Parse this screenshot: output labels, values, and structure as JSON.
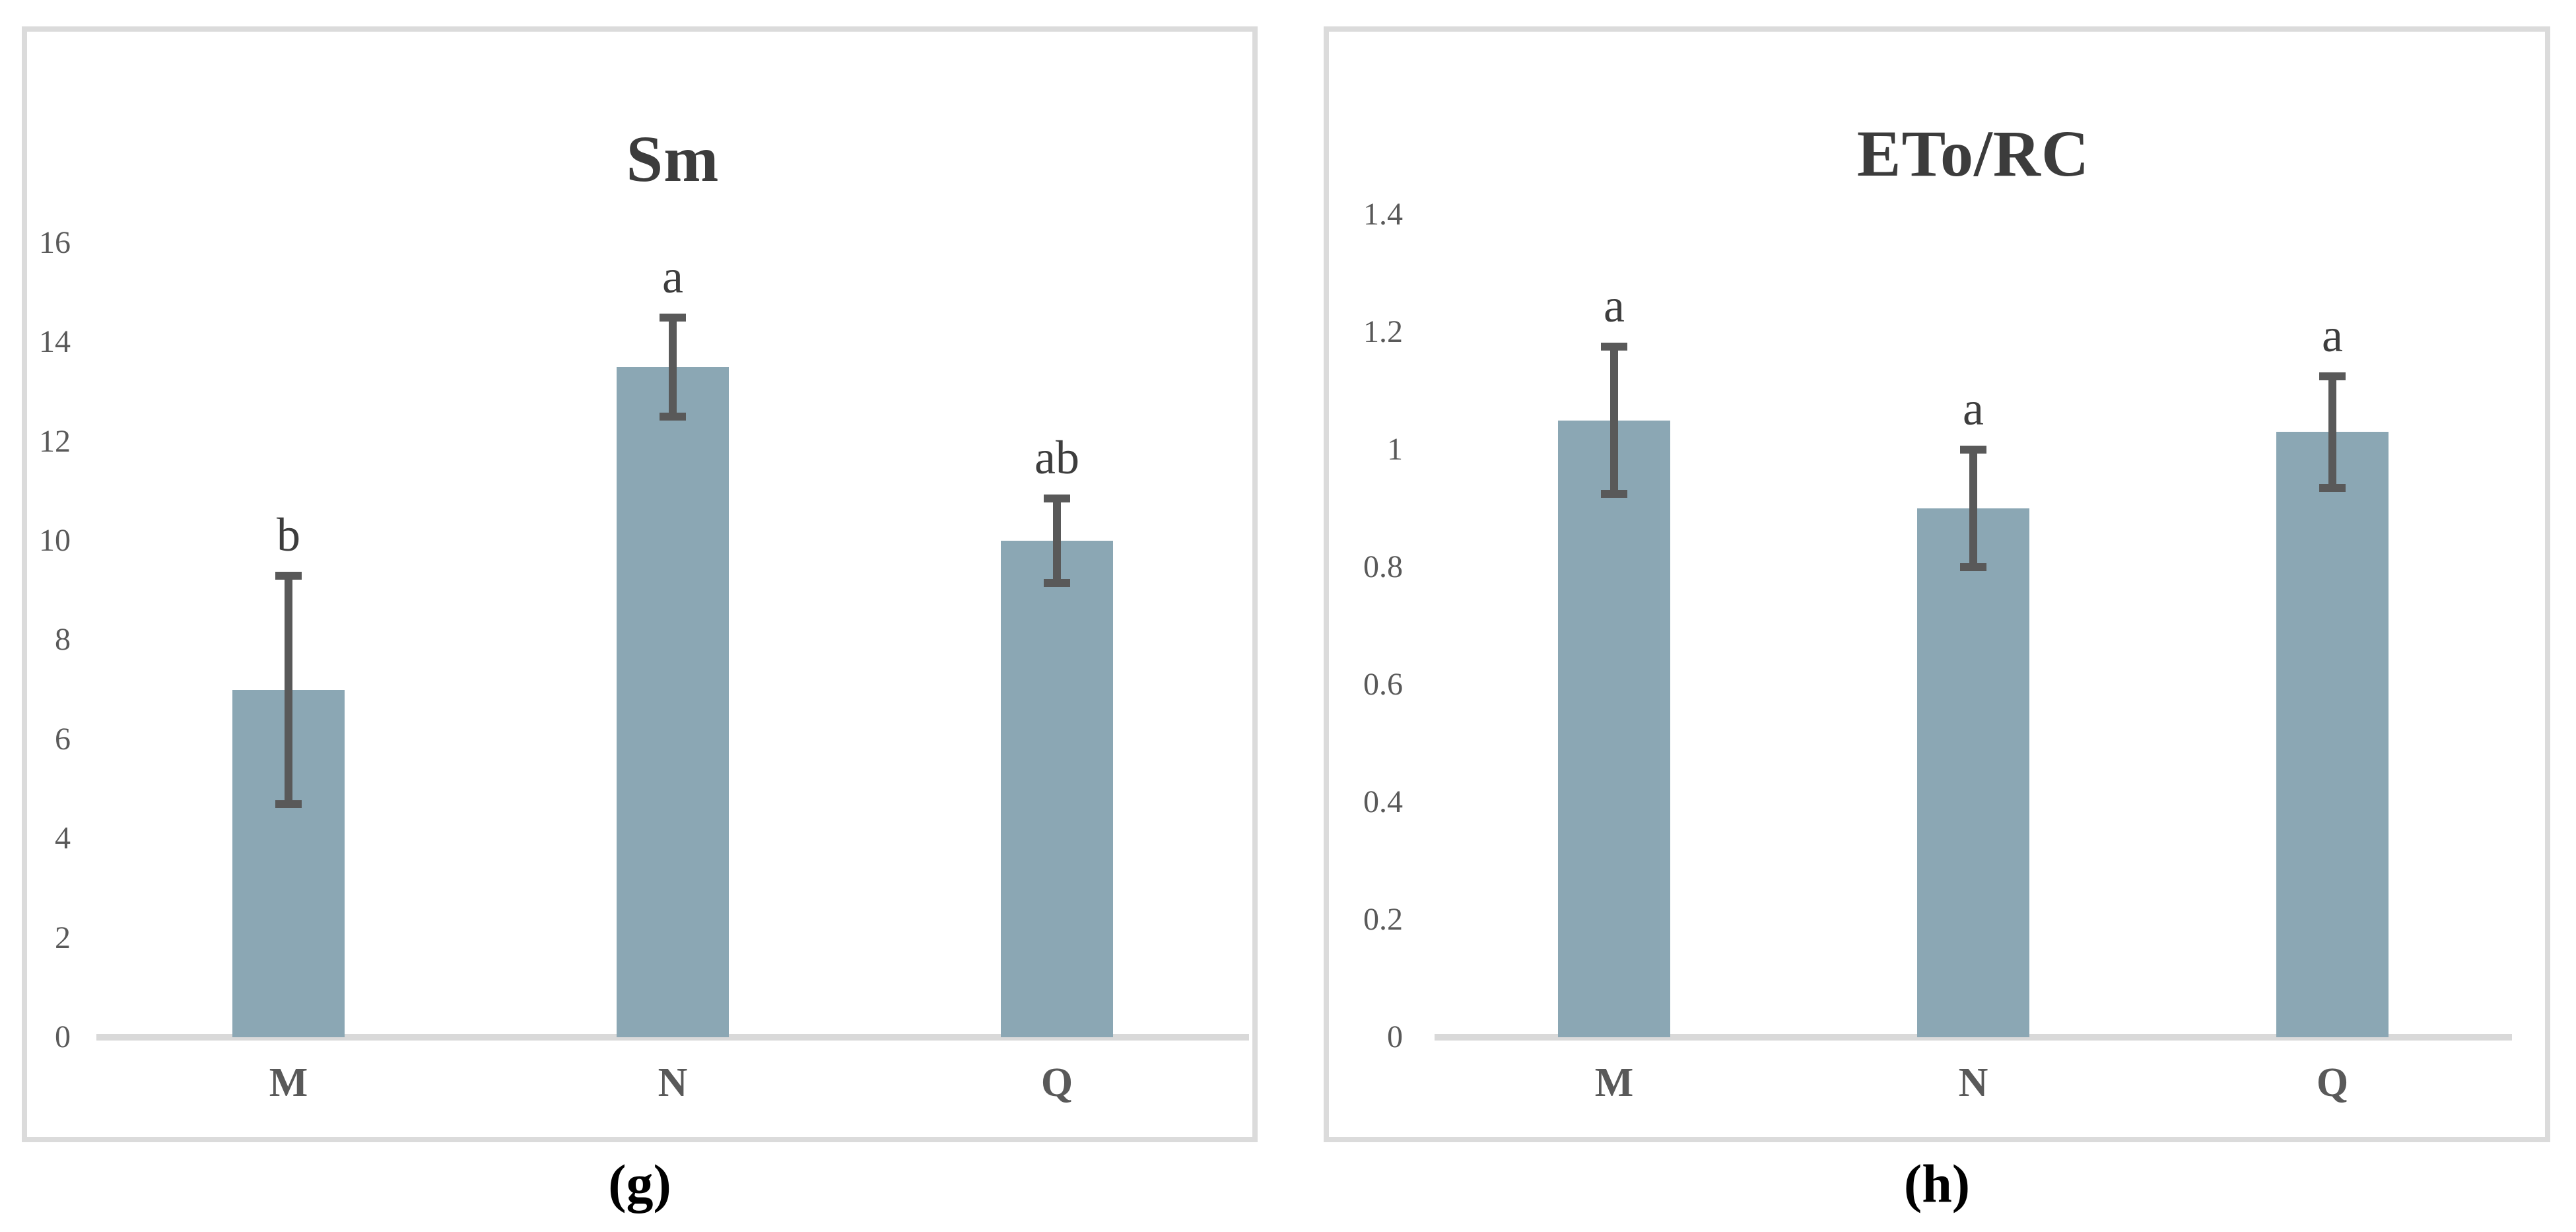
{
  "figure": {
    "description": "Two-panel bar chart figure with significance letters and error bars",
    "panel_captions": [
      "(g)",
      "(h)"
    ],
    "colors": {
      "bar_fill": "#8ba7b4",
      "error_bar": "#595959",
      "axis_line": "#d9d9d9",
      "panel_border": "#dbdbdb",
      "tick_text": "#595959",
      "title_text": "#3c3c3c",
      "caption_text": "#000000"
    }
  },
  "chart_data": [
    {
      "type": "bar",
      "title": "Sm",
      "caption": "(g)",
      "categories": [
        "M",
        "N",
        "Q"
      ],
      "values": [
        7.0,
        13.5,
        10.0
      ],
      "errors": [
        2.3,
        1.0,
        0.85
      ],
      "sig_letters": [
        "b",
        "a",
        "ab"
      ],
      "yticks": [
        0,
        2,
        4,
        6,
        8,
        10,
        12,
        14,
        16
      ],
      "ytick_labels": [
        "0",
        "2",
        "4",
        "6",
        "8",
        "10",
        "12",
        "14",
        "16"
      ],
      "ylim": [
        0,
        16
      ],
      "xlabel": "",
      "ylabel": "",
      "grid": false,
      "legend": false
    },
    {
      "type": "bar",
      "title": "ETo/RC",
      "caption": "(h)",
      "categories": [
        "M",
        "N",
        "Q"
      ],
      "values": [
        1.05,
        0.9,
        1.03
      ],
      "errors": [
        0.125,
        0.1,
        0.095
      ],
      "sig_letters": [
        "a",
        "a",
        "a"
      ],
      "yticks": [
        0,
        0.2,
        0.4,
        0.6,
        0.8,
        1,
        1.2,
        1.4
      ],
      "ytick_labels": [
        "0",
        "0.2",
        "0.4",
        "0.6",
        "0.8",
        "1",
        "1.2",
        "1.4"
      ],
      "ylim": [
        0,
        1.4
      ],
      "xlabel": "",
      "ylabel": "",
      "grid": false,
      "legend": false
    }
  ]
}
